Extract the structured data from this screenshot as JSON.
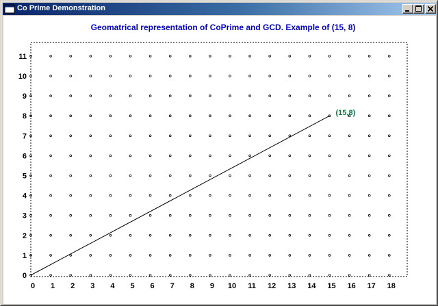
{
  "window": {
    "title": "Co Prime Demonstration",
    "icon": "app-window-icon",
    "controls": [
      "minimize-icon",
      "maximize-icon",
      "close-icon"
    ]
  },
  "colors": {
    "title_text": "#0000cc",
    "point_label": "#007a3d",
    "grid_point": "#000000",
    "vector_line": "#000000",
    "frame": "#000000"
  },
  "chart_data": {
    "type": "scatter",
    "title": "Geomatrical representation of CoPrime and GCD. Example of (15, 8)",
    "xlabel": "",
    "ylabel": "",
    "x_ticks": [
      "0",
      "1",
      "2",
      "3",
      "4",
      "5",
      "6",
      "7",
      "8",
      "9",
      "10",
      "11",
      "12",
      "13",
      "14",
      "15",
      "16",
      "17",
      "18"
    ],
    "y_ticks": [
      "0",
      "1",
      "2",
      "3",
      "4",
      "5",
      "6",
      "7",
      "8",
      "9",
      "10",
      "11"
    ],
    "xlim": [
      0,
      18
    ],
    "ylim": [
      0,
      11
    ],
    "grid": "integer lattice points",
    "frame": "dashed",
    "line": {
      "from": [
        0,
        0
      ],
      "to": [
        15,
        8
      ]
    },
    "point_label": {
      "text": "(15,8)",
      "x": 15,
      "y": 8
    }
  }
}
